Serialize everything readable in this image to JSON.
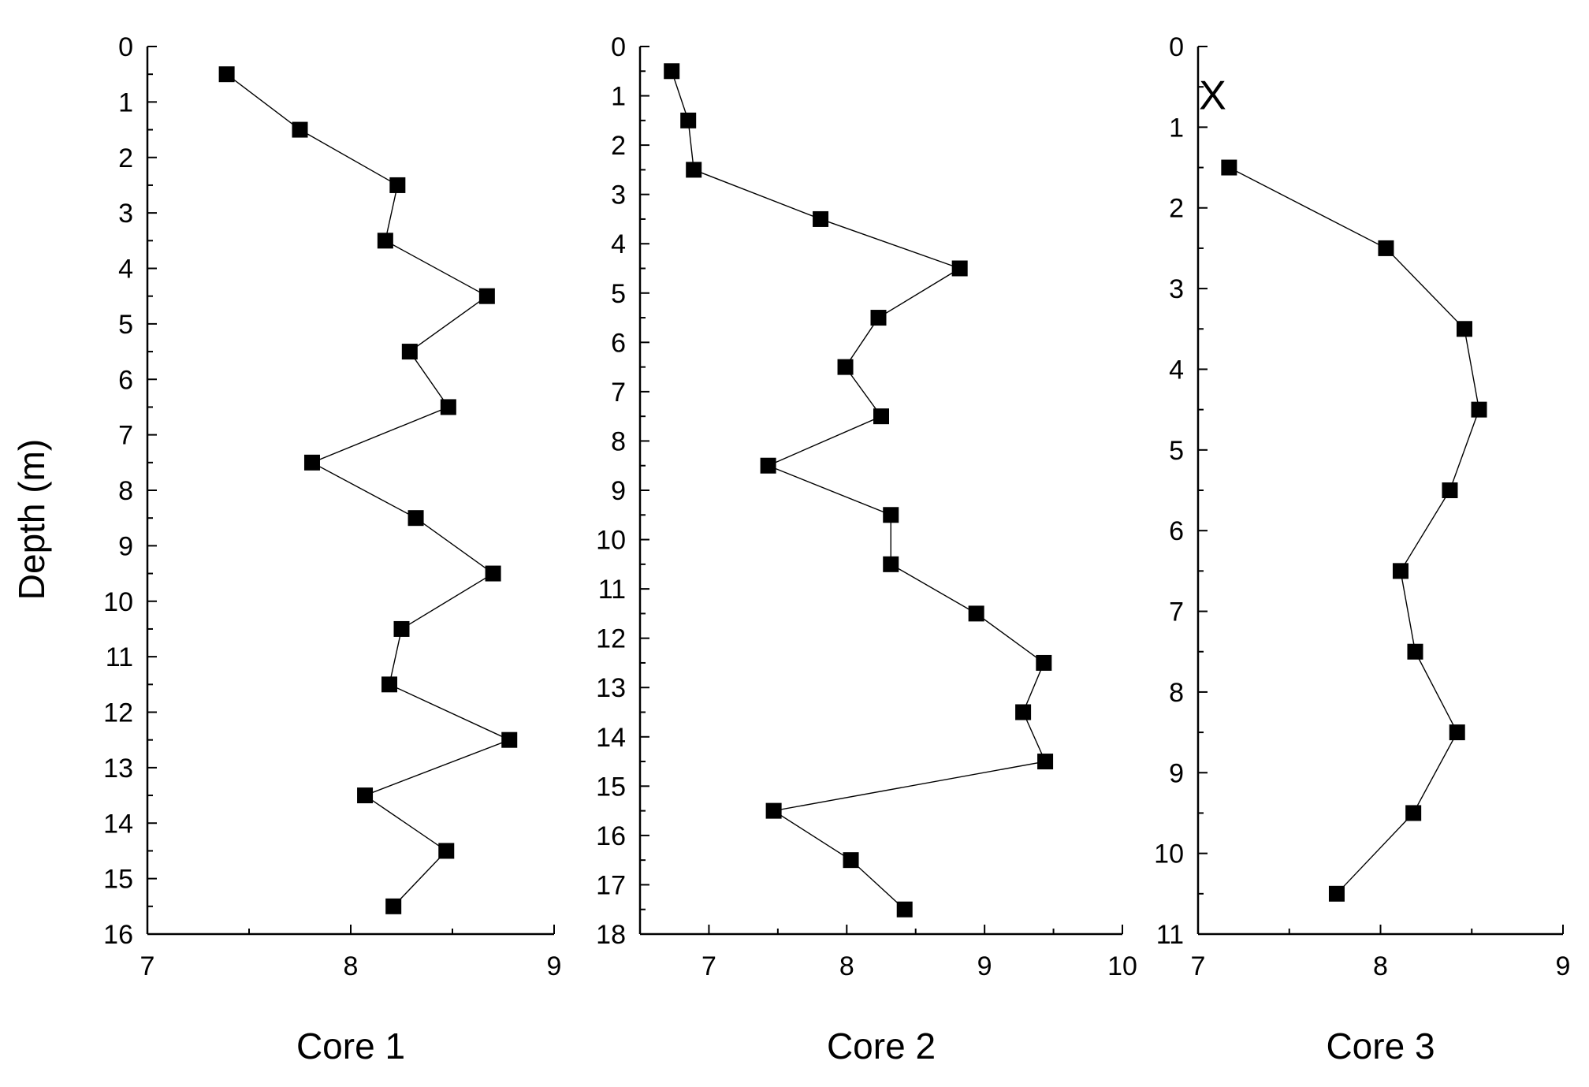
{
  "ylabel": "Depth (m)",
  "colors": {
    "axis": "#000000",
    "marker": "#000000",
    "line": "#000000",
    "background": "#ffffff"
  },
  "chart_data": [
    {
      "type": "line",
      "title": "",
      "xlabel": "Core 1",
      "ylabel": "Depth (m)",
      "xlim": [
        7,
        9
      ],
      "ylim": [
        0,
        16
      ],
      "y_inverted": true,
      "x_ticks": [
        7,
        8,
        9
      ],
      "y_ticks": [
        0,
        1,
        2,
        3,
        4,
        5,
        6,
        7,
        8,
        9,
        10,
        11,
        12,
        13,
        14,
        15,
        16
      ],
      "marker_label": "",
      "series": [
        {
          "name": "Core 1",
          "marker": "square",
          "points": [
            {
              "x": 7.39,
              "y": 0.5
            },
            {
              "x": 7.75,
              "y": 1.5
            },
            {
              "x": 8.23,
              "y": 2.5
            },
            {
              "x": 8.17,
              "y": 3.5
            },
            {
              "x": 8.67,
              "y": 4.5
            },
            {
              "x": 8.29,
              "y": 5.5
            },
            {
              "x": 8.48,
              "y": 6.5
            },
            {
              "x": 7.81,
              "y": 7.5
            },
            {
              "x": 8.32,
              "y": 8.5
            },
            {
              "x": 8.7,
              "y": 9.5
            },
            {
              "x": 8.25,
              "y": 10.5
            },
            {
              "x": 8.19,
              "y": 11.5
            },
            {
              "x": 8.78,
              "y": 12.5
            },
            {
              "x": 8.07,
              "y": 13.5
            },
            {
              "x": 8.47,
              "y": 14.5
            },
            {
              "x": 8.21,
              "y": 15.5
            }
          ]
        }
      ]
    },
    {
      "type": "line",
      "title": "",
      "xlabel": "Core 2",
      "ylabel": "",
      "xlim": [
        6.5,
        10
      ],
      "ylim": [
        0,
        18
      ],
      "y_inverted": true,
      "x_ticks": [
        7,
        8,
        9,
        10
      ],
      "y_ticks": [
        0,
        1,
        2,
        3,
        4,
        5,
        6,
        7,
        8,
        9,
        10,
        11,
        12,
        13,
        14,
        15,
        16,
        17,
        18
      ],
      "marker_label": "",
      "series": [
        {
          "name": "Core 2",
          "marker": "square",
          "points": [
            {
              "x": 6.73,
              "y": 0.5
            },
            {
              "x": 6.85,
              "y": 1.5
            },
            {
              "x": 6.89,
              "y": 2.5
            },
            {
              "x": 7.81,
              "y": 3.5
            },
            {
              "x": 8.82,
              "y": 4.5
            },
            {
              "x": 8.23,
              "y": 5.5
            },
            {
              "x": 7.99,
              "y": 6.5
            },
            {
              "x": 8.25,
              "y": 7.5
            },
            {
              "x": 7.43,
              "y": 8.5
            },
            {
              "x": 8.32,
              "y": 9.5
            },
            {
              "x": 8.32,
              "y": 10.5
            },
            {
              "x": 8.94,
              "y": 11.5
            },
            {
              "x": 9.43,
              "y": 12.5
            },
            {
              "x": 9.28,
              "y": 13.5
            },
            {
              "x": 9.44,
              "y": 14.5
            },
            {
              "x": 7.47,
              "y": 15.5
            },
            {
              "x": 8.03,
              "y": 16.5
            },
            {
              "x": 8.42,
              "y": 17.5
            }
          ]
        }
      ]
    },
    {
      "type": "line",
      "title": "",
      "xlabel": "Core 3",
      "ylabel": "",
      "xlim": [
        7,
        9
      ],
      "ylim": [
        0,
        11
      ],
      "y_inverted": true,
      "x_ticks": [
        7,
        8,
        9
      ],
      "y_ticks": [
        0,
        1,
        2,
        3,
        4,
        5,
        6,
        7,
        8,
        9,
        10,
        11
      ],
      "marker_label": "X",
      "marker_label_position": {
        "x": 7.08,
        "y": 0.6
      },
      "series": [
        {
          "name": "Core 3",
          "marker": "square",
          "points": [
            {
              "x": 7.17,
              "y": 1.5
            },
            {
              "x": 8.03,
              "y": 2.5
            },
            {
              "x": 8.46,
              "y": 3.5
            },
            {
              "x": 8.54,
              "y": 4.5
            },
            {
              "x": 8.38,
              "y": 5.5
            },
            {
              "x": 8.11,
              "y": 6.5
            },
            {
              "x": 8.19,
              "y": 7.5
            },
            {
              "x": 8.42,
              "y": 8.5
            },
            {
              "x": 8.18,
              "y": 9.5
            },
            {
              "x": 7.76,
              "y": 10.5
            }
          ]
        }
      ]
    }
  ]
}
